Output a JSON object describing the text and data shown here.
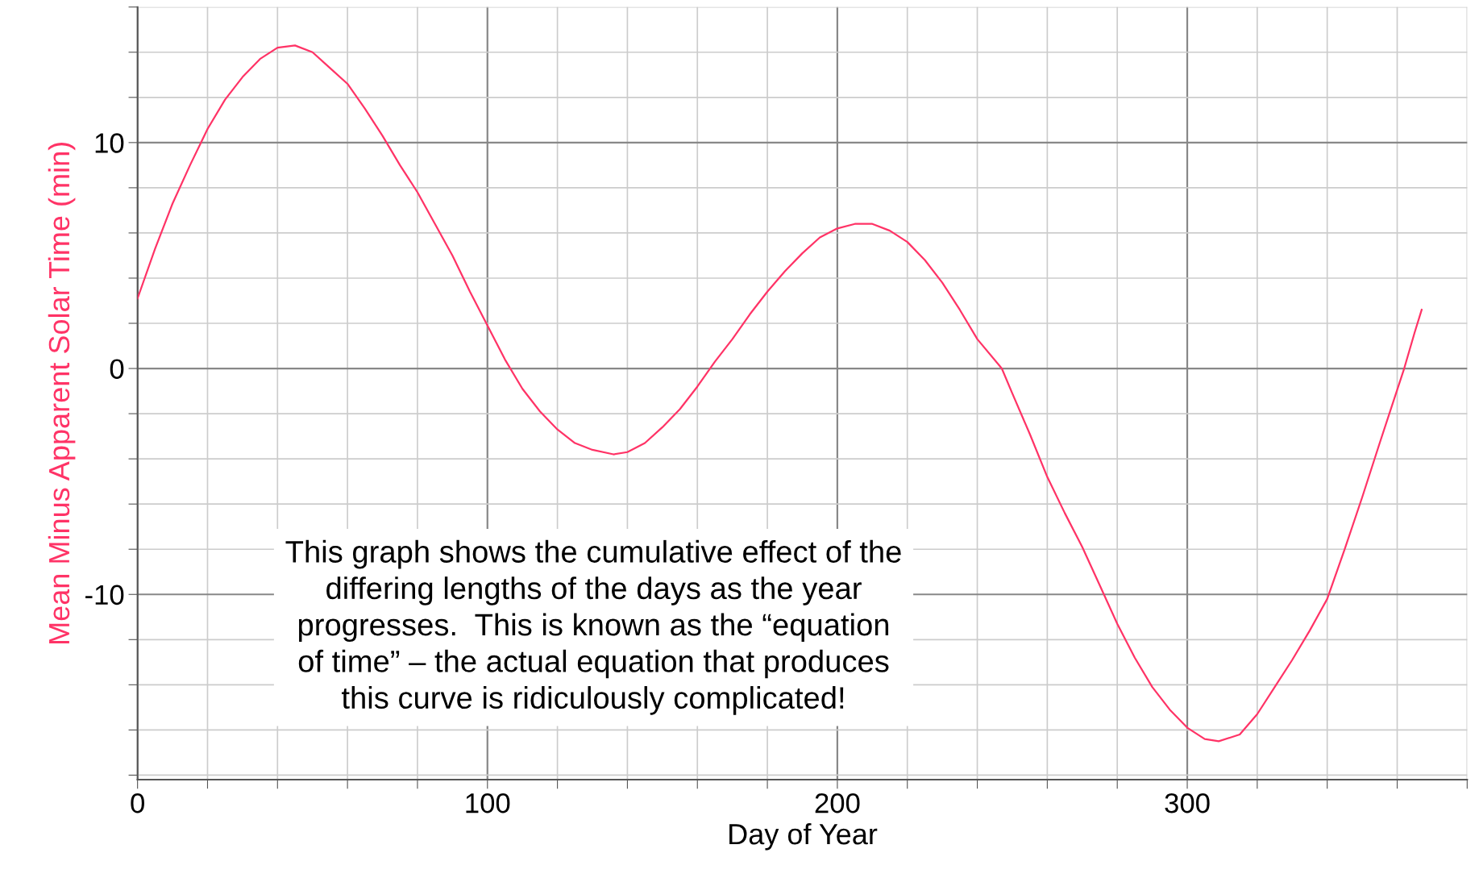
{
  "chart_data": {
    "type": "line",
    "xlabel": "Day of Year",
    "ylabel": "Mean Minus Apparent Solar Time (min)",
    "xlim": [
      0,
      380
    ],
    "ylim": [
      -18.2,
      16
    ],
    "xticks": [
      0,
      {
        "value": 20,
        "label": null
      },
      {
        "value": 40,
        "label": null
      },
      {
        "value": 60,
        "label": null
      },
      {
        "value": 80,
        "label": null
      },
      100,
      {
        "value": 120,
        "label": null
      },
      {
        "value": 140,
        "label": null
      },
      {
        "value": 160,
        "label": null
      },
      {
        "value": 180,
        "label": null
      },
      200,
      {
        "value": 220,
        "label": null
      },
      {
        "value": 240,
        "label": null
      },
      {
        "value": 260,
        "label": null
      },
      {
        "value": 280,
        "label": null
      },
      300,
      {
        "value": 320,
        "label": null
      },
      {
        "value": 340,
        "label": null
      },
      {
        "value": 360,
        "label": null
      },
      {
        "value": 380,
        "label": null
      }
    ],
    "yticks": [
      {
        "value": -18,
        "label": null
      },
      {
        "value": -16,
        "label": null
      },
      {
        "value": -14,
        "label": null
      },
      {
        "value": -12,
        "label": null
      },
      -10,
      {
        "value": -8,
        "label": null
      },
      {
        "value": -6,
        "label": null
      },
      {
        "value": -4,
        "label": null
      },
      {
        "value": -2,
        "label": null
      },
      0,
      {
        "value": 2,
        "label": null
      },
      {
        "value": 4,
        "label": null
      },
      {
        "value": 6,
        "label": null
      },
      {
        "value": 8,
        "label": null
      },
      10,
      {
        "value": 12,
        "label": null
      },
      {
        "value": 14,
        "label": null
      },
      {
        "value": 16,
        "label": null
      }
    ],
    "grid": true,
    "marker": "none",
    "line_style": "solid",
    "series": [
      {
        "color": "#ff3366",
        "x": [
          0,
          5,
          10,
          15,
          20,
          25,
          30,
          35,
          40,
          45,
          50,
          55,
          60,
          65,
          70,
          75,
          80,
          85,
          90,
          95,
          100,
          105,
          110,
          115,
          120,
          125,
          130,
          136,
          140,
          145,
          150,
          155,
          160,
          165,
          170,
          175,
          180,
          185,
          190,
          195,
          200,
          205,
          210,
          215,
          220,
          225,
          230,
          235,
          240,
          247,
          250,
          255,
          260,
          265,
          270,
          275,
          280,
          285,
          290,
          295,
          300,
          305,
          309,
          315,
          320,
          325,
          330,
          335,
          340,
          345,
          350,
          355,
          362,
          365,
          367
        ],
        "values": [
          3.1,
          5.3,
          7.3,
          9.0,
          10.6,
          11.9,
          12.9,
          13.7,
          14.2,
          14.3,
          14.0,
          13.3,
          12.6,
          11.5,
          10.3,
          9.0,
          7.8,
          6.4,
          5.0,
          3.4,
          1.9,
          0.4,
          -0.9,
          -1.9,
          -2.7,
          -3.3,
          -3.6,
          -3.8,
          -3.7,
          -3.3,
          -2.6,
          -1.8,
          -0.8,
          0.3,
          1.3,
          2.4,
          3.4,
          4.3,
          5.1,
          5.8,
          6.2,
          6.4,
          6.4,
          6.1,
          5.6,
          4.8,
          3.8,
          2.6,
          1.3,
          0.0,
          -1.1,
          -2.9,
          -4.8,
          -6.4,
          -7.9,
          -9.6,
          -11.3,
          -12.8,
          -14.1,
          -15.1,
          -15.9,
          -16.4,
          -16.5,
          -16.2,
          -15.3,
          -14.1,
          -12.9,
          -11.6,
          -10.2,
          -8.0,
          -5.7,
          -3.3,
          0.0,
          1.6,
          2.6
        ]
      }
    ],
    "annotations": [
      "This graph shows the cumulative effect of the\ndiffering lengths of the days as the year\nprogresses.  This is known as the “equation\nof time” – the actual equation that produces\nthis curve is ridiculously complicated!"
    ]
  }
}
